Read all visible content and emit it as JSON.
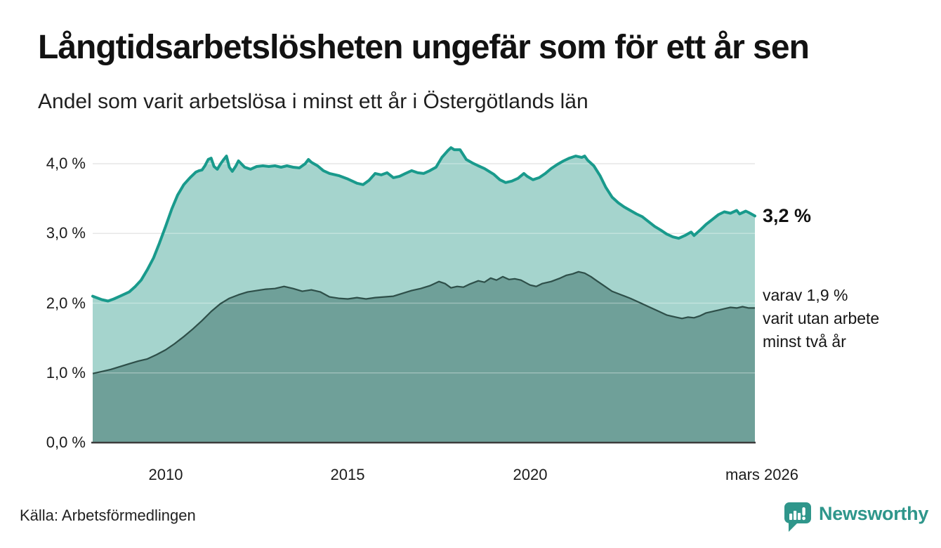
{
  "header": {
    "title": "Långtidsarbetslösheten ungefär som för ett år sen",
    "subtitle": "Andel som varit arbetslösa i minst ett år i Östergötlands län"
  },
  "annotations": {
    "latest_value_label": "3,2 %",
    "sub_lines": [
      "varav 1,9 %",
      "varit utan arbete",
      "minst två år"
    ]
  },
  "footer": {
    "source": "Källa: Arbetsförmedlingen",
    "logo_text": "Newsworthy",
    "logo_icon": "speech-bubble-bar-chart-icon",
    "brand_color": "#2f968b"
  },
  "colors": {
    "line_one_year": "#199a8c",
    "fill_one_year": "#a5d4cd",
    "line_two_years": "#2e4f49",
    "fill_two_years": "#6fa099",
    "gridline": "#dcdcdc",
    "axis_line": "#3c3c3c"
  },
  "chart_data": {
    "type": "area",
    "title": "Långtidsarbetslösheten ungefär som för ett år sen",
    "subtitle": "Andel som varit arbetslösa i minst ett år i Östergötlands län",
    "xlabel": "",
    "ylabel": "",
    "unit": "%",
    "grid": true,
    "legend_position": "none",
    "x_domain": [
      2008.0,
      2026.17
    ],
    "y_domain": [
      0,
      4.3
    ],
    "x_ticks": [
      {
        "t": 2010,
        "label": "2010"
      },
      {
        "t": 2015,
        "label": "2015"
      },
      {
        "t": 2020,
        "label": "2020"
      },
      {
        "t": 2026.17,
        "label": "mars 2026"
      }
    ],
    "y_ticks": [
      {
        "v": 0,
        "label": "0,0 %"
      },
      {
        "v": 1,
        "label": "1,0 %"
      },
      {
        "v": 2,
        "label": "2,0 %"
      },
      {
        "v": 3,
        "label": "3,0 %"
      },
      {
        "v": 4,
        "label": "4,0 %"
      }
    ],
    "series": [
      {
        "name": "Andel arbetslösa minst ett år",
        "end_label": "3,2 %",
        "latest_value": 3.2,
        "color": "#199a8c",
        "fill": "#a5d4cd",
        "points": [
          [
            2008.0,
            2.1
          ],
          [
            2008.25,
            2.05
          ],
          [
            2008.42,
            2.03
          ],
          [
            2008.58,
            2.06
          ],
          [
            2008.75,
            2.1
          ],
          [
            2009.0,
            2.16
          ],
          [
            2009.17,
            2.24
          ],
          [
            2009.33,
            2.33
          ],
          [
            2009.5,
            2.48
          ],
          [
            2009.67,
            2.65
          ],
          [
            2009.83,
            2.86
          ],
          [
            2010.0,
            3.1
          ],
          [
            2010.17,
            3.35
          ],
          [
            2010.33,
            3.55
          ],
          [
            2010.5,
            3.7
          ],
          [
            2010.67,
            3.8
          ],
          [
            2010.83,
            3.88
          ],
          [
            2010.92,
            3.9
          ],
          [
            2011.0,
            3.91
          ],
          [
            2011.08,
            3.97
          ],
          [
            2011.17,
            4.06
          ],
          [
            2011.25,
            4.08
          ],
          [
            2011.33,
            3.96
          ],
          [
            2011.42,
            3.92
          ],
          [
            2011.5,
            3.99
          ],
          [
            2011.58,
            4.05
          ],
          [
            2011.67,
            4.11
          ],
          [
            2011.75,
            3.95
          ],
          [
            2011.83,
            3.89
          ],
          [
            2011.92,
            3.96
          ],
          [
            2012.0,
            4.04
          ],
          [
            2012.17,
            3.95
          ],
          [
            2012.33,
            3.92
          ],
          [
            2012.5,
            3.96
          ],
          [
            2012.67,
            3.97
          ],
          [
            2012.83,
            3.96
          ],
          [
            2013.0,
            3.97
          ],
          [
            2013.17,
            3.95
          ],
          [
            2013.33,
            3.97
          ],
          [
            2013.5,
            3.95
          ],
          [
            2013.67,
            3.94
          ],
          [
            2013.83,
            4.0
          ],
          [
            2013.92,
            4.06
          ],
          [
            2014.0,
            4.02
          ],
          [
            2014.17,
            3.97
          ],
          [
            2014.33,
            3.9
          ],
          [
            2014.5,
            3.86
          ],
          [
            2014.75,
            3.83
          ],
          [
            2015.0,
            3.78
          ],
          [
            2015.25,
            3.72
          ],
          [
            2015.42,
            3.7
          ],
          [
            2015.58,
            3.76
          ],
          [
            2015.75,
            3.86
          ],
          [
            2015.92,
            3.84
          ],
          [
            2016.08,
            3.87
          ],
          [
            2016.25,
            3.8
          ],
          [
            2016.42,
            3.82
          ],
          [
            2016.58,
            3.86
          ],
          [
            2016.75,
            3.9
          ],
          [
            2016.92,
            3.87
          ],
          [
            2017.08,
            3.86
          ],
          [
            2017.25,
            3.9
          ],
          [
            2017.42,
            3.95
          ],
          [
            2017.58,
            4.09
          ],
          [
            2017.75,
            4.19
          ],
          [
            2017.83,
            4.23
          ],
          [
            2017.92,
            4.2
          ],
          [
            2018.08,
            4.2
          ],
          [
            2018.25,
            4.06
          ],
          [
            2018.42,
            4.01
          ],
          [
            2018.58,
            3.97
          ],
          [
            2018.75,
            3.93
          ],
          [
            2019.0,
            3.85
          ],
          [
            2019.17,
            3.77
          ],
          [
            2019.33,
            3.73
          ],
          [
            2019.5,
            3.75
          ],
          [
            2019.67,
            3.79
          ],
          [
            2019.83,
            3.86
          ],
          [
            2019.92,
            3.82
          ],
          [
            2020.08,
            3.77
          ],
          [
            2020.25,
            3.8
          ],
          [
            2020.42,
            3.86
          ],
          [
            2020.58,
            3.93
          ],
          [
            2020.75,
            3.99
          ],
          [
            2020.92,
            4.04
          ],
          [
            2021.08,
            4.08
          ],
          [
            2021.25,
            4.11
          ],
          [
            2021.42,
            4.09
          ],
          [
            2021.5,
            4.11
          ],
          [
            2021.58,
            4.05
          ],
          [
            2021.75,
            3.97
          ],
          [
            2021.92,
            3.83
          ],
          [
            2022.08,
            3.66
          ],
          [
            2022.25,
            3.52
          ],
          [
            2022.42,
            3.44
          ],
          [
            2022.58,
            3.38
          ],
          [
            2022.75,
            3.33
          ],
          [
            2022.92,
            3.28
          ],
          [
            2023.08,
            3.24
          ],
          [
            2023.25,
            3.17
          ],
          [
            2023.42,
            3.1
          ],
          [
            2023.58,
            3.05
          ],
          [
            2023.75,
            2.99
          ],
          [
            2023.92,
            2.95
          ],
          [
            2024.08,
            2.93
          ],
          [
            2024.25,
            2.97
          ],
          [
            2024.42,
            3.02
          ],
          [
            2024.5,
            2.97
          ],
          [
            2024.67,
            3.05
          ],
          [
            2024.83,
            3.13
          ],
          [
            2025.0,
            3.2
          ],
          [
            2025.17,
            3.27
          ],
          [
            2025.33,
            3.31
          ],
          [
            2025.5,
            3.29
          ],
          [
            2025.67,
            3.33
          ],
          [
            2025.75,
            3.28
          ],
          [
            2025.92,
            3.32
          ],
          [
            2026.0,
            3.3
          ],
          [
            2026.17,
            3.25
          ]
        ]
      },
      {
        "name": "varav utan arbete minst två år",
        "end_label": "varav 1,9 % varit utan arbete minst två år",
        "latest_value": 1.9,
        "color": "#2e4f49",
        "fill": "#6fa099",
        "points": [
          [
            2008.0,
            0.99
          ],
          [
            2008.25,
            1.02
          ],
          [
            2008.5,
            1.05
          ],
          [
            2008.75,
            1.09
          ],
          [
            2009.0,
            1.13
          ],
          [
            2009.25,
            1.17
          ],
          [
            2009.5,
            1.2
          ],
          [
            2009.75,
            1.26
          ],
          [
            2010.0,
            1.33
          ],
          [
            2010.25,
            1.42
          ],
          [
            2010.5,
            1.52
          ],
          [
            2010.75,
            1.63
          ],
          [
            2011.0,
            1.75
          ],
          [
            2011.25,
            1.88
          ],
          [
            2011.5,
            1.99
          ],
          [
            2011.75,
            2.07
          ],
          [
            2012.0,
            2.12
          ],
          [
            2012.25,
            2.16
          ],
          [
            2012.5,
            2.18
          ],
          [
            2012.75,
            2.2
          ],
          [
            2013.0,
            2.21
          ],
          [
            2013.25,
            2.24
          ],
          [
            2013.5,
            2.21
          ],
          [
            2013.75,
            2.17
          ],
          [
            2014.0,
            2.19
          ],
          [
            2014.25,
            2.16
          ],
          [
            2014.5,
            2.09
          ],
          [
            2014.75,
            2.07
          ],
          [
            2015.0,
            2.06
          ],
          [
            2015.25,
            2.08
          ],
          [
            2015.5,
            2.06
          ],
          [
            2015.75,
            2.08
          ],
          [
            2016.0,
            2.09
          ],
          [
            2016.25,
            2.1
          ],
          [
            2016.5,
            2.14
          ],
          [
            2016.75,
            2.18
          ],
          [
            2017.0,
            2.21
          ],
          [
            2017.25,
            2.25
          ],
          [
            2017.5,
            2.31
          ],
          [
            2017.67,
            2.28
          ],
          [
            2017.83,
            2.22
          ],
          [
            2018.0,
            2.24
          ],
          [
            2018.17,
            2.23
          ],
          [
            2018.33,
            2.27
          ],
          [
            2018.58,
            2.32
          ],
          [
            2018.75,
            2.3
          ],
          [
            2018.92,
            2.36
          ],
          [
            2019.08,
            2.33
          ],
          [
            2019.25,
            2.38
          ],
          [
            2019.42,
            2.34
          ],
          [
            2019.58,
            2.35
          ],
          [
            2019.75,
            2.33
          ],
          [
            2020.0,
            2.26
          ],
          [
            2020.17,
            2.24
          ],
          [
            2020.33,
            2.28
          ],
          [
            2020.58,
            2.31
          ],
          [
            2020.83,
            2.36
          ],
          [
            2021.0,
            2.4
          ],
          [
            2021.17,
            2.42
          ],
          [
            2021.33,
            2.45
          ],
          [
            2021.5,
            2.43
          ],
          [
            2021.67,
            2.38
          ],
          [
            2021.83,
            2.32
          ],
          [
            2022.0,
            2.26
          ],
          [
            2022.25,
            2.17
          ],
          [
            2022.5,
            2.12
          ],
          [
            2022.75,
            2.07
          ],
          [
            2023.0,
            2.01
          ],
          [
            2023.25,
            1.95
          ],
          [
            2023.5,
            1.89
          ],
          [
            2023.75,
            1.83
          ],
          [
            2024.0,
            1.8
          ],
          [
            2024.17,
            1.78
          ],
          [
            2024.33,
            1.8
          ],
          [
            2024.5,
            1.79
          ],
          [
            2024.67,
            1.82
          ],
          [
            2024.83,
            1.86
          ],
          [
            2025.0,
            1.88
          ],
          [
            2025.17,
            1.9
          ],
          [
            2025.33,
            1.92
          ],
          [
            2025.5,
            1.94
          ],
          [
            2025.67,
            1.93
          ],
          [
            2025.83,
            1.95
          ],
          [
            2026.0,
            1.93
          ],
          [
            2026.17,
            1.93
          ]
        ]
      }
    ]
  }
}
